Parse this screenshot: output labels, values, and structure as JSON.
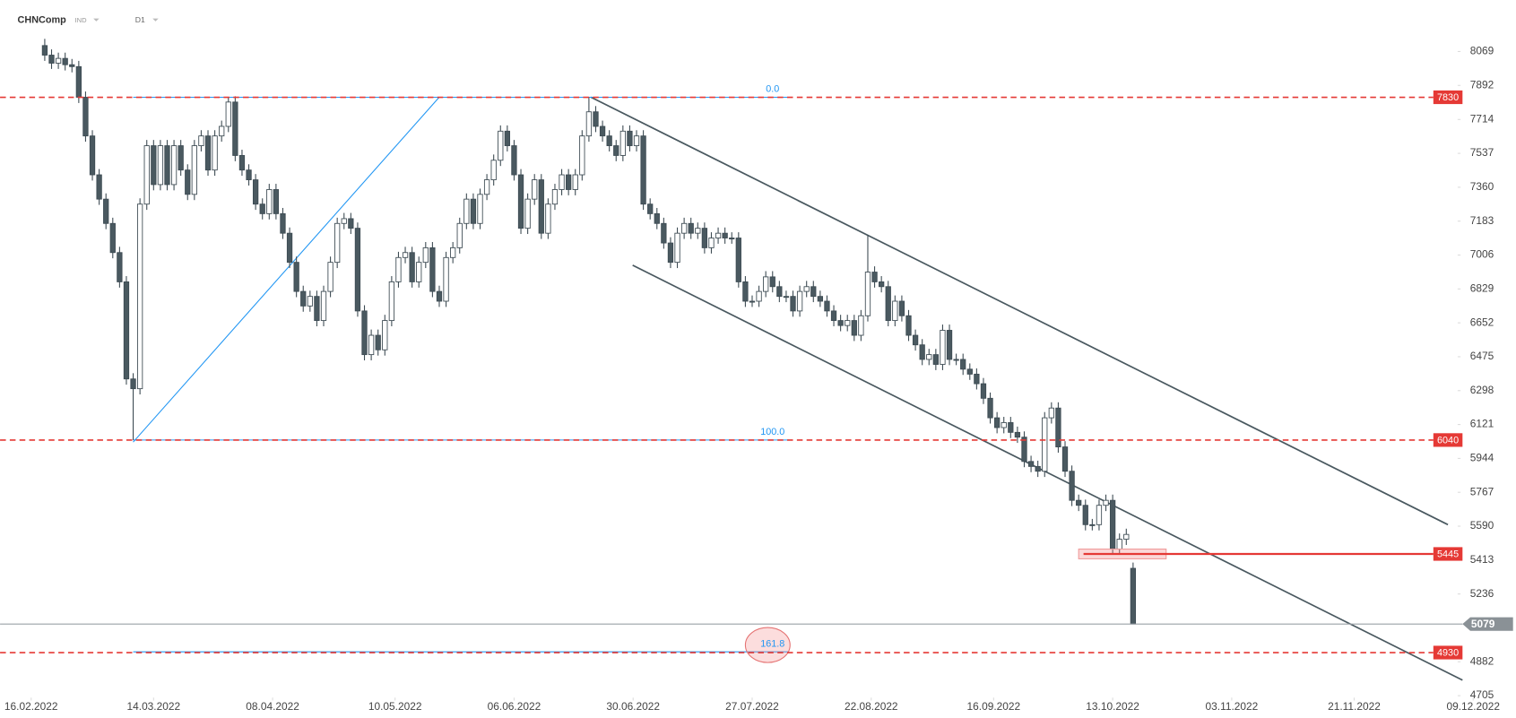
{
  "chart_data": {
    "type": "candlestick",
    "title": "CHNComp",
    "instrument_type": "IND",
    "interval": "D1",
    "xlim": [
      -2,
      212
    ],
    "xticks": [
      {
        "value": -2,
        "label": "16.02.2022"
      },
      {
        "value": 16,
        "label": "14.03.2022"
      },
      {
        "value": 33.5,
        "label": "08.04.2022"
      },
      {
        "value": 51.5,
        "label": "10.05.2022"
      },
      {
        "value": 69,
        "label": "06.06.2022"
      },
      {
        "value": 86.5,
        "label": "30.06.2022"
      },
      {
        "value": 104,
        "label": "27.07.2022"
      },
      {
        "value": 121.5,
        "label": "22.08.2022"
      },
      {
        "value": 139.5,
        "label": "16.09.2022"
      },
      {
        "value": 157,
        "label": "13.10.2022"
      },
      {
        "value": 174.5,
        "label": "03.11.2022"
      },
      {
        "value": 192.5,
        "label": "21.11.2022"
      },
      {
        "value": 210,
        "label": "09.12.2022"
      }
    ],
    "ylim": [
      4705,
      8069
    ],
    "yticks": [
      8069,
      7892,
      7714,
      7537,
      7360,
      7183,
      7006,
      6829,
      6652,
      6475,
      6298,
      6121,
      5944,
      5767,
      5590,
      5413,
      5236,
      4882,
      4705
    ],
    "up_color": "#ffffff",
    "down_color": "#4a5960",
    "ohlc": [
      [
        8100,
        8135,
        8020,
        8050
      ],
      [
        8050,
        8080,
        7978,
        8008
      ],
      [
        8008,
        8063,
        7978,
        8033
      ],
      [
        8033,
        8063,
        7970,
        8000
      ],
      [
        8000,
        8030,
        7960,
        7990
      ],
      [
        7990,
        8020,
        7800,
        7830
      ],
      [
        7830,
        7860,
        7598,
        7628
      ],
      [
        7628,
        7658,
        7395,
        7425
      ],
      [
        7425,
        7455,
        7268,
        7298
      ],
      [
        7298,
        7328,
        7141,
        7171
      ],
      [
        7171,
        7201,
        6989,
        7019
      ],
      [
        7019,
        7049,
        6836,
        6866
      ],
      [
        6866,
        6896,
        6329,
        6359
      ],
      [
        6359,
        6389,
        6040,
        6308
      ],
      [
        6308,
        7302,
        6278,
        7272
      ],
      [
        7272,
        7607,
        7242,
        7577
      ],
      [
        7577,
        7607,
        7344,
        7374
      ],
      [
        7374,
        7607,
        7344,
        7577
      ],
      [
        7577,
        7607,
        7344,
        7374
      ],
      [
        7374,
        7607,
        7344,
        7577
      ],
      [
        7577,
        7607,
        7420,
        7450
      ],
      [
        7450,
        7480,
        7293,
        7323
      ],
      [
        7323,
        7607,
        7293,
        7577
      ],
      [
        7577,
        7658,
        7547,
        7628
      ],
      [
        7628,
        7658,
        7420,
        7450
      ],
      [
        7450,
        7658,
        7420,
        7628
      ],
      [
        7628,
        7708,
        7598,
        7678
      ],
      [
        7678,
        7830,
        7648,
        7805
      ],
      [
        7805,
        7835,
        7496,
        7526
      ],
      [
        7526,
        7556,
        7420,
        7450
      ],
      [
        7450,
        7480,
        7369,
        7399
      ],
      [
        7399,
        7429,
        7242,
        7272
      ],
      [
        7272,
        7302,
        7192,
        7222
      ],
      [
        7222,
        7378,
        7192,
        7348
      ],
      [
        7348,
        7378,
        7192,
        7222
      ],
      [
        7222,
        7252,
        7090,
        7120
      ],
      [
        7120,
        7150,
        6938,
        6968
      ],
      [
        6968,
        6998,
        6786,
        6816
      ],
      [
        6816,
        6846,
        6710,
        6740
      ],
      [
        6740,
        6820,
        6710,
        6790
      ],
      [
        6790,
        6820,
        6634,
        6664
      ],
      [
        6664,
        6846,
        6634,
        6816
      ],
      [
        6816,
        6998,
        6786,
        6968
      ],
      [
        6968,
        7201,
        6938,
        7171
      ],
      [
        7171,
        7226,
        7141,
        7196
      ],
      [
        7196,
        7226,
        7116,
        7146
      ],
      [
        7146,
        7176,
        6684,
        6714
      ],
      [
        6714,
        6744,
        6456,
        6486
      ],
      [
        6486,
        6617,
        6456,
        6587
      ],
      [
        6587,
        6617,
        6481,
        6511
      ],
      [
        6511,
        6694,
        6481,
        6664
      ],
      [
        6664,
        6896,
        6634,
        6866
      ],
      [
        6866,
        7023,
        6836,
        6993
      ],
      [
        6993,
        7049,
        6963,
        7019
      ],
      [
        7019,
        7049,
        6836,
        6866
      ],
      [
        6866,
        6998,
        6836,
        6968
      ],
      [
        6968,
        7074,
        6938,
        7044
      ],
      [
        7044,
        7074,
        6786,
        6816
      ],
      [
        6816,
        6846,
        6735,
        6765
      ],
      [
        6765,
        7023,
        6735,
        6993
      ],
      [
        6993,
        7074,
        6963,
        7044
      ],
      [
        7044,
        7201,
        7014,
        7171
      ],
      [
        7171,
        7328,
        7141,
        7298
      ],
      [
        7298,
        7328,
        7141,
        7171
      ],
      [
        7171,
        7353,
        7141,
        7323
      ],
      [
        7323,
        7429,
        7293,
        7399
      ],
      [
        7399,
        7531,
        7369,
        7501
      ],
      [
        7501,
        7683,
        7471,
        7653
      ],
      [
        7653,
        7683,
        7547,
        7577
      ],
      [
        7577,
        7607,
        7395,
        7425
      ],
      [
        7425,
        7455,
        7116,
        7146
      ],
      [
        7146,
        7328,
        7116,
        7298
      ],
      [
        7298,
        7429,
        7268,
        7399
      ],
      [
        7399,
        7429,
        7090,
        7120
      ],
      [
        7120,
        7302,
        7090,
        7272
      ],
      [
        7272,
        7378,
        7242,
        7348
      ],
      [
        7348,
        7455,
        7318,
        7425
      ],
      [
        7425,
        7455,
        7318,
        7348
      ],
      [
        7348,
        7455,
        7318,
        7425
      ],
      [
        7425,
        7658,
        7395,
        7628
      ],
      [
        7628,
        7830,
        7598,
        7754
      ],
      [
        7754,
        7784,
        7648,
        7678
      ],
      [
        7678,
        7708,
        7598,
        7628
      ],
      [
        7628,
        7658,
        7547,
        7577
      ],
      [
        7577,
        7607,
        7496,
        7526
      ],
      [
        7526,
        7683,
        7496,
        7653
      ],
      [
        7653,
        7683,
        7547,
        7577
      ],
      [
        7577,
        7658,
        7547,
        7628
      ],
      [
        7628,
        7658,
        7242,
        7272
      ],
      [
        7272,
        7302,
        7192,
        7222
      ],
      [
        7222,
        7252,
        7141,
        7171
      ],
      [
        7171,
        7201,
        7039,
        7069
      ],
      [
        7069,
        7099,
        6938,
        6968
      ],
      [
        6968,
        7150,
        6938,
        7120
      ],
      [
        7120,
        7201,
        7090,
        7171
      ],
      [
        7171,
        7201,
        7090,
        7120
      ],
      [
        7120,
        7176,
        7090,
        7146
      ],
      [
        7146,
        7176,
        7014,
        7044
      ],
      [
        7044,
        7125,
        7014,
        7095
      ],
      [
        7095,
        7150,
        7065,
        7120
      ],
      [
        7120,
        7150,
        7065,
        7095
      ],
      [
        7095,
        7125,
        7065,
        7095
      ],
      [
        7095,
        7125,
        6836,
        6866
      ],
      [
        6866,
        6896,
        6735,
        6765
      ],
      [
        6765,
        6795,
        6735,
        6765
      ],
      [
        6765,
        6846,
        6735,
        6816
      ],
      [
        6816,
        6922,
        6786,
        6892
      ],
      [
        6892,
        6922,
        6811,
        6841
      ],
      [
        6841,
        6871,
        6760,
        6790
      ],
      [
        6790,
        6820,
        6760,
        6790
      ],
      [
        6790,
        6820,
        6684,
        6714
      ],
      [
        6714,
        6846,
        6684,
        6816
      ],
      [
        6816,
        6871,
        6786,
        6841
      ],
      [
        6841,
        6871,
        6760,
        6790
      ],
      [
        6790,
        6820,
        6735,
        6765
      ],
      [
        6765,
        6795,
        6684,
        6714
      ],
      [
        6714,
        6744,
        6634,
        6664
      ],
      [
        6664,
        6694,
        6608,
        6638
      ],
      [
        6638,
        6694,
        6608,
        6664
      ],
      [
        6664,
        6694,
        6557,
        6587
      ],
      [
        6587,
        6719,
        6557,
        6689
      ],
      [
        6689,
        7110,
        6659,
        6917
      ],
      [
        6917,
        6947,
        6836,
        6866
      ],
      [
        6866,
        6896,
        6811,
        6841
      ],
      [
        6841,
        6871,
        6634,
        6664
      ],
      [
        6664,
        6795,
        6634,
        6765
      ],
      [
        6765,
        6795,
        6659,
        6689
      ],
      [
        6689,
        6719,
        6557,
        6587
      ],
      [
        6587,
        6617,
        6507,
        6537
      ],
      [
        6537,
        6567,
        6431,
        6461
      ],
      [
        6461,
        6516,
        6431,
        6486
      ],
      [
        6486,
        6516,
        6405,
        6435
      ],
      [
        6435,
        6643,
        6405,
        6613
      ],
      [
        6613,
        6643,
        6431,
        6461
      ],
      [
        6461,
        6491,
        6431,
        6461
      ],
      [
        6461,
        6491,
        6380,
        6410
      ],
      [
        6410,
        6440,
        6354,
        6384
      ],
      [
        6384,
        6414,
        6304,
        6334
      ],
      [
        6334,
        6364,
        6228,
        6258
      ],
      [
        6258,
        6288,
        6126,
        6156
      ],
      [
        6156,
        6186,
        6075,
        6105
      ],
      [
        6105,
        6161,
        6075,
        6131
      ],
      [
        6131,
        6161,
        6050,
        6080
      ],
      [
        6080,
        6110,
        6025,
        6055
      ],
      [
        6055,
        6085,
        5898,
        5928
      ],
      [
        5928,
        5958,
        5872,
        5902
      ],
      [
        5902,
        5932,
        5847,
        5877
      ],
      [
        5877,
        6186,
        5847,
        6156
      ],
      [
        6156,
        6237,
        6126,
        6207
      ],
      [
        6207,
        6237,
        5974,
        6004
      ],
      [
        6004,
        6034,
        5847,
        5877
      ],
      [
        5877,
        5907,
        5695,
        5725
      ],
      [
        5725,
        5755,
        5669,
        5699
      ],
      [
        5699,
        5729,
        5568,
        5598
      ],
      [
        5598,
        5628,
        5568,
        5598
      ],
      [
        5598,
        5729,
        5568,
        5699
      ],
      [
        5699,
        5755,
        5669,
        5725
      ],
      [
        5725,
        5755,
        5441,
        5471
      ],
      [
        5471,
        5552,
        5441,
        5522
      ],
      [
        5522,
        5577,
        5492,
        5547
      ],
      [
        5370,
        5400,
        5079,
        5079
      ]
    ],
    "levels": [
      7830,
      6040,
      4930
    ],
    "level_color": "#e53935",
    "support": 5445,
    "last_price": 5079,
    "fib_high": 7830,
    "fib_low": 6040,
    "fib_levels": [
      {
        "value": 0,
        "label": "0.0"
      },
      {
        "value": 100,
        "label": "100.0"
      },
      {
        "value": 161.8,
        "label": "161.8"
      }
    ],
    "fib_color": "#2196f3"
  }
}
